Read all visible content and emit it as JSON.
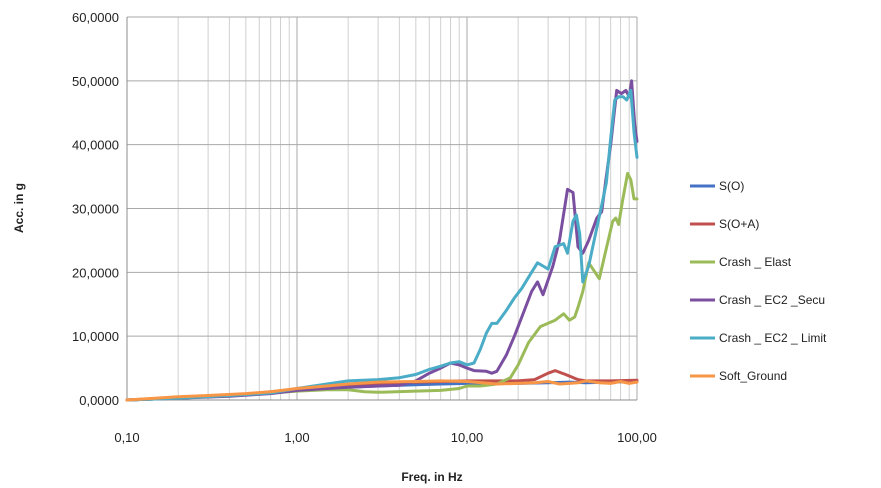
{
  "chart_data": {
    "type": "line",
    "title": "",
    "xlabel": "Freq. in Hz",
    "ylabel": "Acc. in g",
    "x_scale": "log",
    "xlim": [
      0.1,
      100
    ],
    "ylim": [
      0,
      60
    ],
    "x_ticks": [
      0.1,
      1,
      10,
      100
    ],
    "x_tick_labels": [
      "0,10",
      "1,00",
      "10,00",
      "100,00"
    ],
    "y_ticks": [
      0,
      10,
      20,
      30,
      40,
      50,
      60
    ],
    "y_tick_labels": [
      "0,0000",
      "10,0000",
      "20,0000",
      "30,0000",
      "40,0000",
      "50,0000",
      "60,0000"
    ],
    "grid": {
      "x_major": true,
      "x_minor": true,
      "y_major": true
    },
    "legend": {
      "placement": "right"
    },
    "series": [
      {
        "name": "S(O)",
        "color": "#4472c4",
        "points": [
          [
            0.1,
            0
          ],
          [
            0.2,
            0.3
          ],
          [
            0.3,
            0.5
          ],
          [
            0.5,
            0.8
          ],
          [
            0.7,
            1.2
          ],
          [
            1,
            1.5
          ],
          [
            1.5,
            1.8
          ],
          [
            2,
            2
          ],
          [
            3,
            2.2
          ],
          [
            5,
            2.4
          ],
          [
            7,
            2.5
          ],
          [
            10,
            2.6
          ],
          [
            15,
            2.6
          ],
          [
            20,
            2.6
          ],
          [
            30,
            2.7
          ],
          [
            40,
            2.8
          ],
          [
            50,
            2.7
          ],
          [
            70,
            2.8
          ],
          [
            100,
            2.9
          ]
        ]
      },
      {
        "name": "S(O+A)",
        "color": "#c0504d",
        "points": [
          [
            0.1,
            0
          ],
          [
            0.2,
            0.4
          ],
          [
            0.3,
            0.6
          ],
          [
            0.5,
            0.9
          ],
          [
            0.7,
            1.3
          ],
          [
            1,
            1.7
          ],
          [
            1.5,
            2.1
          ],
          [
            2,
            2.4
          ],
          [
            3,
            2.6
          ],
          [
            5,
            2.8
          ],
          [
            7,
            2.9
          ],
          [
            10,
            3
          ],
          [
            15,
            3
          ],
          [
            20,
            3
          ],
          [
            25,
            3.2
          ],
          [
            30,
            4.2
          ],
          [
            33,
            4.6
          ],
          [
            38,
            4
          ],
          [
            45,
            3.2
          ],
          [
            50,
            3
          ],
          [
            70,
            3
          ],
          [
            100,
            3.1
          ]
        ]
      },
      {
        "name": "Crash _ Elast",
        "color": "#9bbb59",
        "points": [
          [
            0.1,
            0
          ],
          [
            0.2,
            0.3
          ],
          [
            0.4,
            0.7
          ],
          [
            0.7,
            1.1
          ],
          [
            1,
            1.4
          ],
          [
            1.5,
            1.6
          ],
          [
            2,
            1.6
          ],
          [
            2.5,
            1.3
          ],
          [
            3,
            1.2
          ],
          [
            5,
            1.4
          ],
          [
            7,
            1.5
          ],
          [
            9,
            1.8
          ],
          [
            10,
            2.2
          ],
          [
            12,
            2.2
          ],
          [
            15,
            2.5
          ],
          [
            18,
            3.5
          ],
          [
            20,
            5.5
          ],
          [
            23,
            9
          ],
          [
            27,
            11.5
          ],
          [
            33,
            12.5
          ],
          [
            37,
            13.5
          ],
          [
            40,
            12.5
          ],
          [
            43,
            13
          ],
          [
            45,
            14.5
          ],
          [
            48,
            17
          ],
          [
            52,
            21.5
          ],
          [
            55,
            20.5
          ],
          [
            60,
            19
          ],
          [
            65,
            23
          ],
          [
            72,
            28
          ],
          [
            75,
            28.5
          ],
          [
            78,
            27.5
          ],
          [
            82,
            31
          ],
          [
            88,
            35.5
          ],
          [
            92,
            34.5
          ],
          [
            96,
            31.5
          ],
          [
            100,
            31.5
          ]
        ]
      },
      {
        "name": "Crash _ EC2 _Secu",
        "color": "#7b4fa0",
        "points": [
          [
            0.1,
            0
          ],
          [
            0.2,
            0.3
          ],
          [
            0.4,
            0.6
          ],
          [
            0.7,
            1
          ],
          [
            1,
            1.5
          ],
          [
            1.5,
            1.8
          ],
          [
            2,
            2
          ],
          [
            3,
            2.2
          ],
          [
            4,
            2.3
          ],
          [
            5,
            3
          ],
          [
            6,
            4.2
          ],
          [
            7,
            5
          ],
          [
            8,
            5.8
          ],
          [
            9,
            5.5
          ],
          [
            10,
            5
          ],
          [
            11,
            4.6
          ],
          [
            13,
            4.5
          ],
          [
            14,
            4.2
          ],
          [
            15,
            4.5
          ],
          [
            17,
            7
          ],
          [
            19,
            10
          ],
          [
            21,
            13
          ],
          [
            24,
            17
          ],
          [
            26,
            18.5
          ],
          [
            28,
            16.5
          ],
          [
            32,
            21
          ],
          [
            35,
            25
          ],
          [
            39,
            33
          ],
          [
            42,
            32.5
          ],
          [
            45,
            24
          ],
          [
            48,
            23
          ],
          [
            52,
            25
          ],
          [
            58,
            28.5
          ],
          [
            62,
            29.5
          ],
          [
            66,
            35
          ],
          [
            70,
            40
          ],
          [
            76,
            48.5
          ],
          [
            81,
            48
          ],
          [
            86,
            48.5
          ],
          [
            90,
            47.5
          ],
          [
            93,
            50
          ],
          [
            97,
            43
          ],
          [
            100,
            40.5
          ]
        ]
      },
      {
        "name": "Crash _ EC2 _ Limit",
        "color": "#4aacc6",
        "points": [
          [
            0.1,
            0
          ],
          [
            0.2,
            0.3
          ],
          [
            0.4,
            0.7
          ],
          [
            0.7,
            1.1
          ],
          [
            1,
            1.8
          ],
          [
            1.5,
            2.5
          ],
          [
            2,
            3
          ],
          [
            3,
            3.2
          ],
          [
            4,
            3.5
          ],
          [
            5,
            4
          ],
          [
            6,
            4.8
          ],
          [
            7,
            5.3
          ],
          [
            8,
            5.8
          ],
          [
            9,
            6
          ],
          [
            10,
            5.5
          ],
          [
            11,
            5.8
          ],
          [
            12,
            8
          ],
          [
            13,
            10.5
          ],
          [
            14,
            12
          ],
          [
            15,
            12
          ],
          [
            17,
            14
          ],
          [
            19,
            16
          ],
          [
            21,
            17.5
          ],
          [
            24,
            20
          ],
          [
            26,
            21.5
          ],
          [
            28,
            21
          ],
          [
            30,
            20.5
          ],
          [
            33,
            24
          ],
          [
            37,
            24.5
          ],
          [
            39,
            23
          ],
          [
            42,
            28
          ],
          [
            44,
            29
          ],
          [
            46,
            26
          ],
          [
            48,
            18.5
          ],
          [
            52,
            21
          ],
          [
            57,
            26
          ],
          [
            62,
            30.5
          ],
          [
            66,
            34
          ],
          [
            70,
            41
          ],
          [
            74,
            47
          ],
          [
            78,
            47.5
          ],
          [
            83,
            47.5
          ],
          [
            87,
            47
          ],
          [
            92,
            48.5
          ],
          [
            96,
            42
          ],
          [
            100,
            38
          ]
        ]
      },
      {
        "name": "Soft_Ground",
        "color": "#f79646",
        "points": [
          [
            0.1,
            0
          ],
          [
            0.2,
            0.5
          ],
          [
            0.3,
            0.7
          ],
          [
            0.5,
            1
          ],
          [
            0.7,
            1.3
          ],
          [
            1,
            1.8
          ],
          [
            1.5,
            2.2
          ],
          [
            2,
            2.5
          ],
          [
            3,
            2.8
          ],
          [
            5,
            2.9
          ],
          [
            7,
            3
          ],
          [
            10,
            2.9
          ],
          [
            15,
            2.5
          ],
          [
            20,
            2.6
          ],
          [
            25,
            2.7
          ],
          [
            30,
            2.9
          ],
          [
            35,
            2.5
          ],
          [
            40,
            2.6
          ],
          [
            45,
            2.7
          ],
          [
            50,
            3
          ],
          [
            60,
            2.7
          ],
          [
            70,
            2.6
          ],
          [
            80,
            2.9
          ],
          [
            90,
            2.6
          ],
          [
            100,
            2.8
          ]
        ]
      }
    ]
  }
}
